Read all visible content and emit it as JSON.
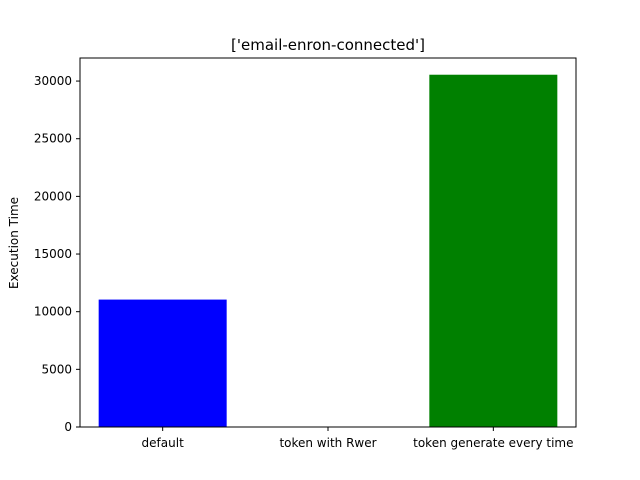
{
  "chart_data": {
    "type": "bar",
    "title": "['email-enron-connected']",
    "xlabel": "",
    "ylabel": "Execution Time",
    "categories": [
      "default",
      "token with Rwer",
      "token generate every time"
    ],
    "values": [
      11050,
      0,
      30550
    ],
    "colors": [
      "#0000ff",
      "#0000ff",
      "#008000"
    ],
    "ylim": [
      0,
      32000
    ],
    "yticks": [
      0,
      5000,
      10000,
      15000,
      20000,
      25000,
      30000
    ],
    "grid": false,
    "legend": "none"
  }
}
